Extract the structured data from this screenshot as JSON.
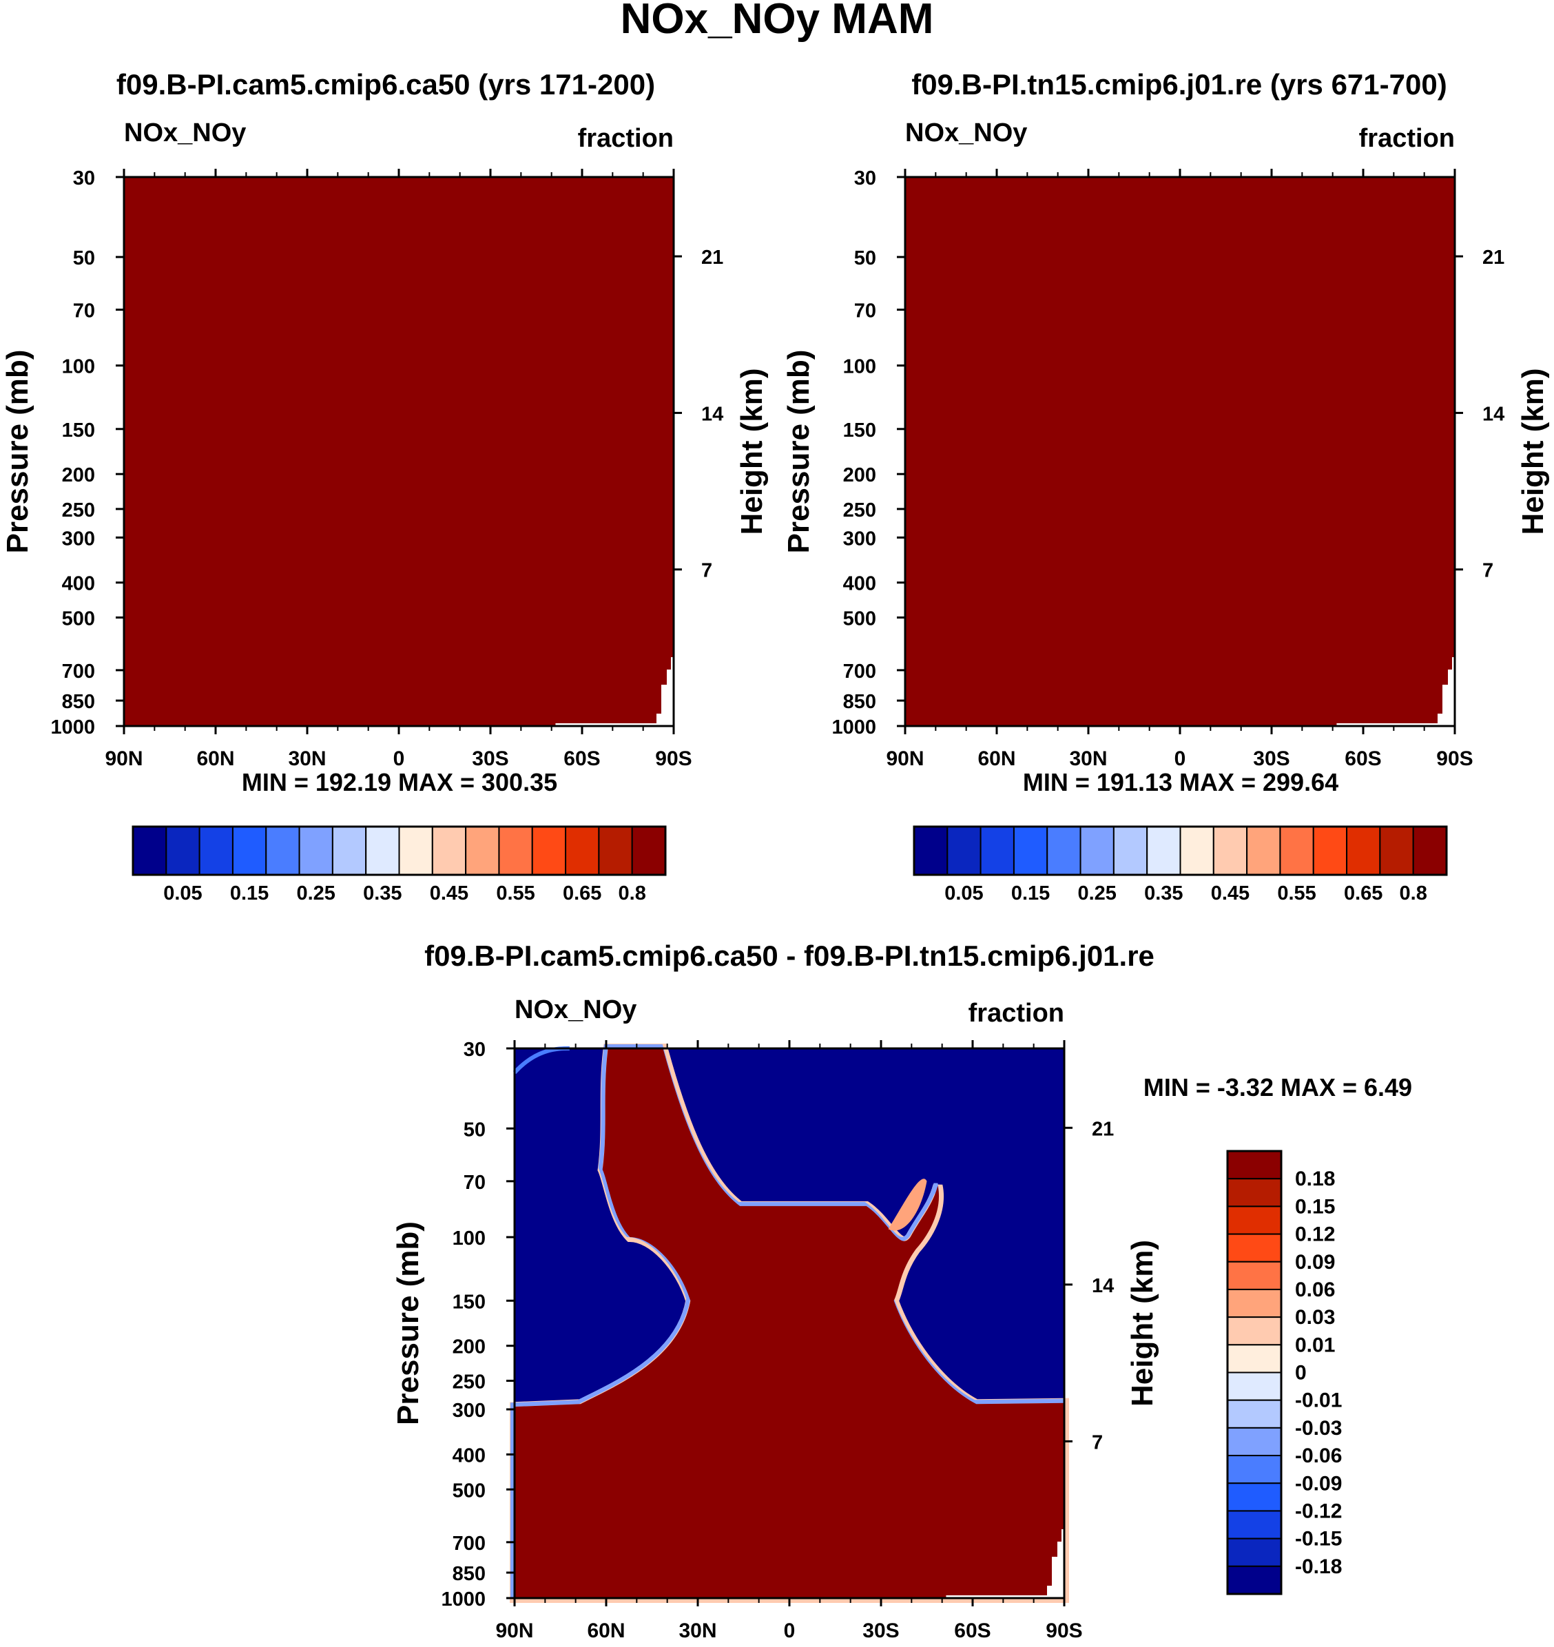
{
  "figure_title": "NOx_NOy MAM",
  "colors": {
    "dark_red": "#8b0000",
    "navy": "#00008b",
    "white": "#ffffff",
    "axis": "#000000"
  },
  "chart_data": [
    {
      "id": "panel-1",
      "type": "heatmap",
      "title": "f09.B-PI.cam5.cmip6.ca50 (yrs 171-200)",
      "variable_label": "NOx_NOy",
      "units_label": "fraction",
      "ylabel": "Pressure (mb)",
      "y2label": "Height (km)",
      "x_ticks": [
        "90N",
        "60N",
        "30N",
        "0",
        "30S",
        "60S",
        "90S"
      ],
      "y_ticks": [
        "30",
        "50",
        "70",
        "100",
        "150",
        "200",
        "250",
        "300",
        "400",
        "500",
        "700",
        "850",
        "1000"
      ],
      "y2_ticks": [
        "21",
        "14",
        "7"
      ],
      "ylim_mb": [
        1000,
        30
      ],
      "stats": "MIN = 192.19  MAX = 300.35",
      "fill_description": "entire field at top color level",
      "colorbar": {
        "orientation": "horizontal",
        "colors": [
          "#00008b",
          "#0a26bf",
          "#1441e6",
          "#1f5cff",
          "#4a7dff",
          "#7fa1ff",
          "#b3c9ff",
          "#dfeaff",
          "#ffeedd",
          "#ffcbb0",
          "#ffa47b",
          "#ff7345",
          "#ff4a15",
          "#e02e00",
          "#b51c00",
          "#8b0000"
        ],
        "labels": [
          "0.05",
          "0.15",
          "0.25",
          "0.35",
          "0.45",
          "0.55",
          "0.65",
          "0.8"
        ]
      }
    },
    {
      "id": "panel-2",
      "type": "heatmap",
      "title": "f09.B-PI.tn15.cmip6.j01.re (yrs 671-700)",
      "variable_label": "NOx_NOy",
      "units_label": "fraction",
      "ylabel": "Pressure (mb)",
      "y2label": "Height (km)",
      "x_ticks": [
        "90N",
        "60N",
        "30N",
        "0",
        "30S",
        "60S",
        "90S"
      ],
      "y_ticks": [
        "30",
        "50",
        "70",
        "100",
        "150",
        "200",
        "250",
        "300",
        "400",
        "500",
        "700",
        "850",
        "1000"
      ],
      "y2_ticks": [
        "21",
        "14",
        "7"
      ],
      "ylim_mb": [
        1000,
        30
      ],
      "stats": "MIN = 191.13  MAX = 299.64",
      "fill_description": "entire field at top color level",
      "colorbar": {
        "orientation": "horizontal",
        "colors": [
          "#00008b",
          "#0a26bf",
          "#1441e6",
          "#1f5cff",
          "#4a7dff",
          "#7fa1ff",
          "#b3c9ff",
          "#dfeaff",
          "#ffeedd",
          "#ffcbb0",
          "#ffa47b",
          "#ff7345",
          "#ff4a15",
          "#e02e00",
          "#b51c00",
          "#8b0000"
        ],
        "labels": [
          "0.05",
          "0.15",
          "0.25",
          "0.35",
          "0.45",
          "0.55",
          "0.65",
          "0.8"
        ]
      }
    },
    {
      "id": "panel-3",
      "type": "heatmap",
      "title": "f09.B-PI.cam5.cmip6.ca50 - f09.B-PI.tn15.cmip6.j01.re",
      "variable_label": "NOx_NOy",
      "units_label": "fraction",
      "ylabel": "Pressure (mb)",
      "y2label": "Height (km)",
      "x_ticks": [
        "90N",
        "60N",
        "30N",
        "0",
        "30S",
        "60S",
        "90S"
      ],
      "y_ticks": [
        "30",
        "50",
        "70",
        "100",
        "150",
        "200",
        "250",
        "300",
        "400",
        "500",
        "700",
        "850",
        "1000"
      ],
      "y2_ticks": [
        "21",
        "14",
        "7"
      ],
      "ylim_mb": [
        1000,
        30
      ],
      "stats": "MIN =  -3.32  MAX =   6.49",
      "fill_description": "difference field: positive (dark red) in troposphere and tropical column, negative (navy) in extratropical lower stratosphere",
      "colorbar": {
        "orientation": "vertical",
        "colors": [
          "#8b0000",
          "#b51c00",
          "#e02e00",
          "#ff4a15",
          "#ff7345",
          "#ffa47b",
          "#ffcbb0",
          "#ffeedd",
          "#dfeaff",
          "#b3c9ff",
          "#7fa1ff",
          "#4a7dff",
          "#1f5cff",
          "#1441e6",
          "#0a26bf",
          "#00008b"
        ],
        "labels": [
          "0.18",
          "0.15",
          "0.12",
          "0.09",
          "0.06",
          "0.03",
          "0.01",
          "0",
          "-0.01",
          "-0.03",
          "-0.06",
          "-0.09",
          "-0.12",
          "-0.15",
          "-0.18"
        ]
      }
    }
  ]
}
